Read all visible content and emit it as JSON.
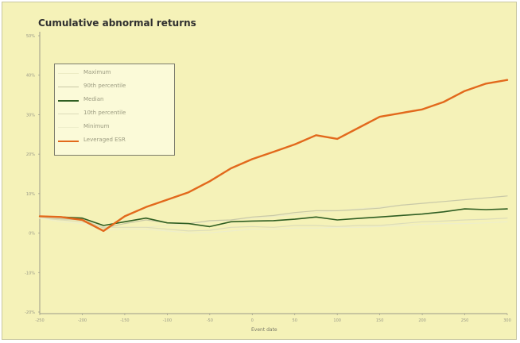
{
  "chart_data": {
    "type": "line",
    "title": "Cumulative abnormal returns",
    "xlabel": "Event date",
    "ylabel": "",
    "ylim": [
      -0.25,
      0.5
    ],
    "y_ticks": [
      "50%",
      "40%",
      "30%",
      "20%",
      "10%",
      "0%",
      "-10%",
      "-20%"
    ],
    "x_ticks": [
      "-250",
      "-200",
      "-150",
      "-100",
      "-50",
      "0",
      "50",
      "100",
      "150",
      "200",
      "250",
      "300"
    ],
    "grid": false,
    "legend_position": "top-left",
    "x": [
      -250,
      -225,
      -200,
      -175,
      -150,
      -125,
      -100,
      -75,
      -50,
      -25,
      0,
      25,
      50,
      75,
      100,
      125,
      150,
      175,
      200,
      225,
      250,
      275,
      300
    ],
    "series": [
      {
        "name": "Maximum",
        "color": "#ecebc4",
        "values": [
          0.005,
          0.005,
          0.004,
          -0.02,
          -0.02,
          -0.02,
          -0.015,
          -0.01,
          -0.005,
          0.0,
          0.005,
          0.01,
          0.015,
          0.02,
          0.025,
          0.03,
          0.035,
          0.04,
          0.045,
          0.05,
          0.055,
          0.06,
          0.065
        ]
      },
      {
        "name": "90th percentile",
        "color": "#c9c9a6",
        "values": [
          0.005,
          0.003,
          0.0,
          -0.022,
          -0.01,
          0.0,
          -0.008,
          -0.01,
          -0.002,
          0.0,
          0.008,
          0.012,
          0.02,
          0.025,
          0.025,
          0.028,
          0.032,
          0.04,
          0.045,
          0.05,
          0.055,
          0.06,
          0.065
        ]
      },
      {
        "name": "Median",
        "color": "#2f5e22",
        "values": [
          0.01,
          0.008,
          0.005,
          -0.015,
          -0.005,
          0.005,
          -0.008,
          -0.01,
          -0.018,
          -0.005,
          -0.003,
          -0.002,
          0.002,
          0.008,
          0.0,
          0.004,
          0.008,
          0.012,
          0.016,
          0.022,
          0.03,
          0.028,
          0.03
        ]
      },
      {
        "name": "10th percentile",
        "color": "#dcdcb8",
        "values": [
          0.005,
          0.0,
          -0.005,
          -0.02,
          -0.02,
          -0.02,
          -0.025,
          -0.03,
          -0.028,
          -0.02,
          -0.018,
          -0.02,
          -0.015,
          -0.015,
          -0.018,
          -0.015,
          -0.015,
          -0.01,
          -0.005,
          -0.003,
          0.0,
          0.002,
          0.005
        ]
      },
      {
        "name": "Minimum",
        "color": "#eeeecb",
        "values": [
          0.005,
          -0.005,
          -0.01,
          -0.028,
          -0.025,
          -0.025,
          -0.03,
          -0.035,
          -0.035,
          -0.03,
          -0.025,
          -0.025,
          -0.022,
          -0.022,
          -0.02,
          -0.02,
          -0.018,
          -0.015,
          -0.012,
          -0.01,
          -0.01,
          -0.008,
          -0.005
        ]
      },
      {
        "name": "Leveraged ESR",
        "color": "#e2691c",
        "values": [
          0.01,
          0.008,
          0.0,
          -0.03,
          0.01,
          0.035,
          0.055,
          0.075,
          0.105,
          0.14,
          0.165,
          0.185,
          0.205,
          0.23,
          0.22,
          0.25,
          0.28,
          0.29,
          0.3,
          0.32,
          0.35,
          0.37,
          0.38
        ]
      }
    ]
  }
}
